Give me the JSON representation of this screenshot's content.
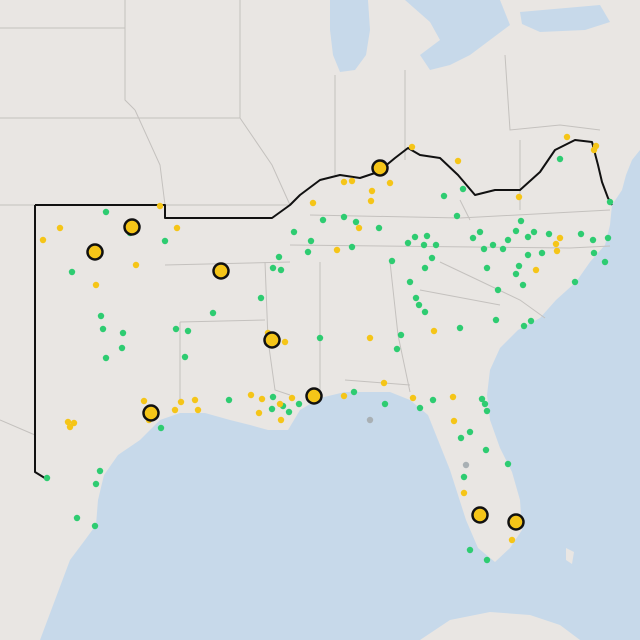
{
  "map": {
    "colors": {
      "land": "#e9e6e3",
      "water": "#c7d9ea",
      "state_border": "#c4c1be",
      "region_outline": "#111111",
      "green_point": "#2ecc71",
      "yellow_point": "#f5c518",
      "gray_point": "#a9b0b4"
    },
    "legend": null
  }
}
